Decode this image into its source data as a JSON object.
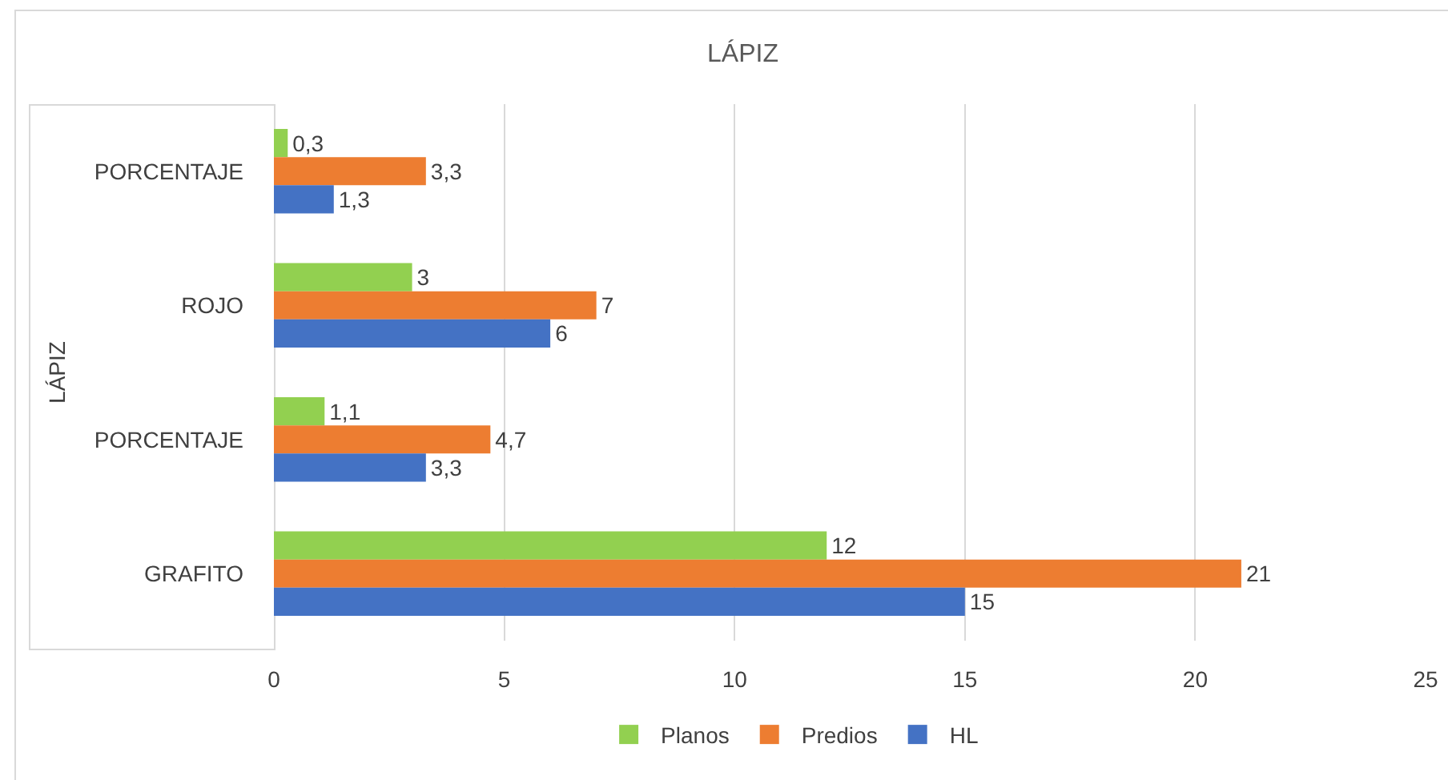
{
  "chart_data": {
    "type": "bar",
    "orientation": "horizontal",
    "title": "LÁPIZ",
    "ylabel": "LÁPIZ",
    "categories": [
      "PORCENTAJE",
      "ROJO",
      "PORCENTAJE",
      "GRAFITO"
    ],
    "series": [
      {
        "name": "Planos",
        "color": "#92d050",
        "values": [
          0.3,
          3,
          1.1,
          12
        ],
        "value_labels": [
          "0,3",
          "3",
          "1,1",
          "12"
        ]
      },
      {
        "name": "Predios",
        "color": "#ed7d31",
        "values": [
          3.3,
          7,
          4.7,
          21
        ],
        "value_labels": [
          "3,3",
          "7",
          "4,7",
          "21"
        ]
      },
      {
        "name": "HL",
        "color": "#4472c4",
        "values": [
          1.3,
          6,
          3.3,
          15
        ],
        "value_labels": [
          "1,3",
          "6",
          "3,3",
          "15"
        ]
      }
    ],
    "xlim": [
      0,
      25
    ],
    "xticks": [
      0,
      5,
      10,
      15,
      20,
      25
    ],
    "grid": "x",
    "legend": "bottom"
  }
}
